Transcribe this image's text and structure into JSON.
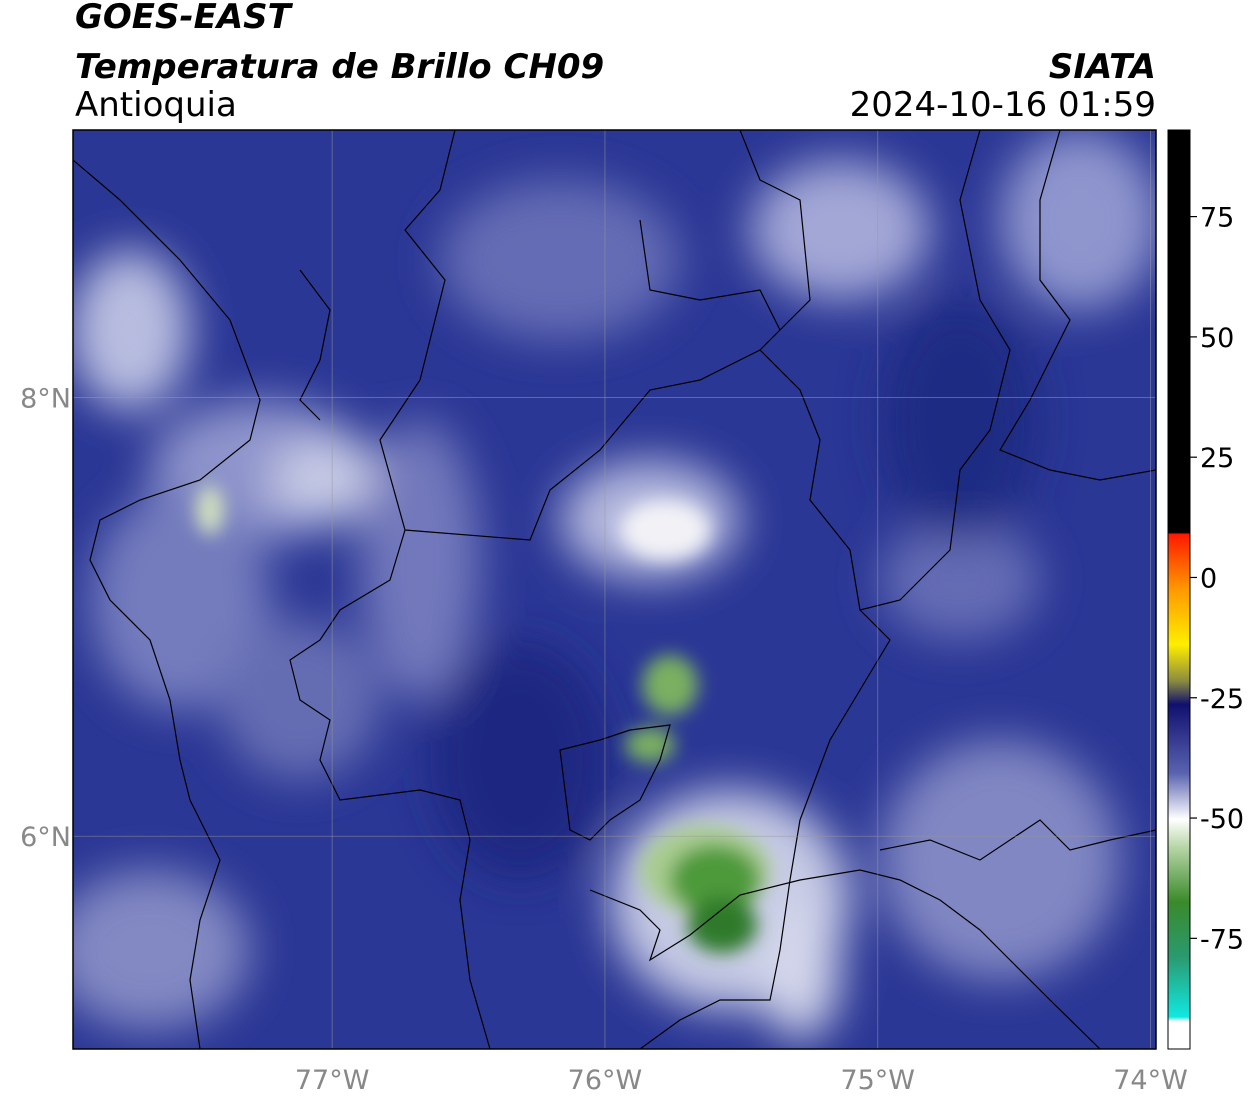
{
  "header": {
    "title": "GOES-EAST",
    "subtitle": "Temperatura de Brillo CH09",
    "region": "Antioquia",
    "source": "SIATA",
    "timestamp": "2024-10-16 01:59"
  },
  "map": {
    "xlim": [
      -77.95,
      -73.98
    ],
    "ylim": [
      5.03,
      9.22
    ],
    "xticks": [
      {
        "value": -77,
        "label": "77°W"
      },
      {
        "value": -76,
        "label": "76°W"
      },
      {
        "value": -75,
        "label": "75°W"
      },
      {
        "value": -74,
        "label": "74°W"
      }
    ],
    "yticks": [
      {
        "value": 8,
        "label": "8°N"
      },
      {
        "value": 6,
        "label": "6°N"
      }
    ]
  },
  "colorbar": {
    "lim": [
      -98,
      93
    ],
    "ticks": [
      75,
      50,
      25,
      0,
      -25,
      -50,
      -75
    ]
  }
}
